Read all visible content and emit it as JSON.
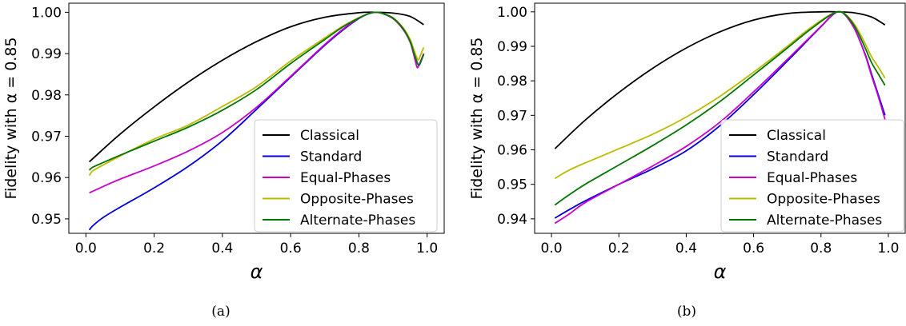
{
  "colors": {
    "Classical": "#000000",
    "Standard": "#0000dd",
    "Equal-Phases": "#cc00cc",
    "Opposite-Phases": "#bbbb00",
    "Alternate-Phases": "#007700"
  },
  "chart_data": [
    {
      "type": "line",
      "caption": "(a)",
      "xlabel": "α",
      "ylabel": "Fidelity with α = 0.85",
      "xlim": [
        -0.05,
        1.05
      ],
      "ylim": [
        0.9465,
        1.0022
      ],
      "xticks": [
        0.0,
        0.2,
        0.4,
        0.6,
        0.8,
        1.0
      ],
      "xtick_labels": [
        "0.0",
        "0.2",
        "0.4",
        "0.6",
        "0.8",
        "1.0"
      ],
      "yticks": [
        0.95,
        0.96,
        0.97,
        0.98,
        0.99,
        1.0
      ],
      "ytick_labels": [
        "0.95",
        "0.96",
        "0.97",
        "0.98",
        "0.99",
        "1.00"
      ],
      "grid": false,
      "legend_position": "lower-right",
      "series": [
        {
          "name": "Classical",
          "x": [
            0.01,
            0.1,
            0.2,
            0.3,
            0.4,
            0.5,
            0.6,
            0.7,
            0.8,
            0.85,
            0.9,
            0.95,
            0.99
          ],
          "y": [
            0.9638,
            0.9705,
            0.9771,
            0.9831,
            0.9884,
            0.9929,
            0.9965,
            0.9988,
            0.9999,
            1.0,
            0.9998,
            0.999,
            0.997
          ]
        },
        {
          "name": "Standard",
          "x": [
            0.01,
            0.02,
            0.05,
            0.1,
            0.2,
            0.3,
            0.4,
            0.5,
            0.6,
            0.7,
            0.75,
            0.8,
            0.83,
            0.85,
            0.87,
            0.9,
            0.93,
            0.95,
            0.96,
            0.97,
            0.975,
            0.98,
            0.99
          ],
          "y": [
            0.9473,
            0.9483,
            0.9503,
            0.9528,
            0.9575,
            0.9627,
            0.9689,
            0.9765,
            0.9843,
            0.992,
            0.9955,
            0.9985,
            0.9997,
            1.0,
            0.9997,
            0.9985,
            0.996,
            0.993,
            0.9905,
            0.988,
            0.9872,
            0.9877,
            0.99
          ]
        },
        {
          "name": "Equal-Phases",
          "x": [
            0.01,
            0.05,
            0.1,
            0.2,
            0.3,
            0.4,
            0.5,
            0.6,
            0.7,
            0.75,
            0.8,
            0.83,
            0.85,
            0.87,
            0.9,
            0.93,
            0.95,
            0.96,
            0.97,
            0.975,
            0.98,
            0.99
          ],
          "y": [
            0.9563,
            0.9578,
            0.9596,
            0.9628,
            0.9664,
            0.9709,
            0.977,
            0.9845,
            0.9922,
            0.9957,
            0.9986,
            0.9997,
            1.0,
            0.9997,
            0.9985,
            0.9958,
            0.9928,
            0.99,
            0.9868,
            0.987,
            0.988,
            0.99
          ]
        },
        {
          "name": "Opposite-Phases",
          "x": [
            0.01,
            0.02,
            0.05,
            0.1,
            0.2,
            0.3,
            0.4,
            0.5,
            0.6,
            0.7,
            0.75,
            0.8,
            0.83,
            0.85,
            0.87,
            0.9,
            0.93,
            0.95,
            0.96,
            0.97,
            0.975,
            0.98,
            0.99
          ],
          "y": [
            0.9605,
            0.9616,
            0.963,
            0.9652,
            0.9693,
            0.9727,
            0.9772,
            0.982,
            0.9882,
            0.9938,
            0.9965,
            0.9987,
            0.9997,
            1.0,
            0.9997,
            0.9987,
            0.9962,
            0.9935,
            0.9912,
            0.989,
            0.9885,
            0.9895,
            0.9915
          ]
        },
        {
          "name": "Alternate-Phases",
          "x": [
            0.01,
            0.02,
            0.05,
            0.1,
            0.2,
            0.3,
            0.4,
            0.5,
            0.6,
            0.7,
            0.75,
            0.8,
            0.83,
            0.85,
            0.87,
            0.9,
            0.93,
            0.95,
            0.96,
            0.97,
            0.975,
            0.98,
            0.99
          ],
          "y": [
            0.9618,
            0.9625,
            0.9636,
            0.9654,
            0.9688,
            0.9722,
            0.9763,
            0.9813,
            0.9876,
            0.9934,
            0.9963,
            0.9986,
            0.9997,
            1.0,
            0.9997,
            0.9986,
            0.996,
            0.993,
            0.9905,
            0.988,
            0.9872,
            0.9878,
            0.9898
          ]
        }
      ]
    },
    {
      "type": "line",
      "caption": "(b)",
      "xlabel": "α",
      "ylabel": "Fidelity with α = 0.85",
      "xlim": [
        -0.05,
        1.05
      ],
      "ylim": [
        0.9358,
        1.0025
      ],
      "xticks": [
        0.0,
        0.2,
        0.4,
        0.6,
        0.8,
        1.0
      ],
      "xtick_labels": [
        "0.0",
        "0.2",
        "0.4",
        "0.6",
        "0.8",
        "1.0"
      ],
      "yticks": [
        0.94,
        0.95,
        0.96,
        0.97,
        0.98,
        0.99,
        1.0
      ],
      "ytick_labels": [
        "0.94",
        "0.95",
        "0.96",
        "0.97",
        "0.98",
        "0.99",
        "1.00"
      ],
      "grid": false,
      "legend_position": "lower-right",
      "series": [
        {
          "name": "Classical",
          "x": [
            0.01,
            0.1,
            0.2,
            0.3,
            0.4,
            0.5,
            0.6,
            0.7,
            0.8,
            0.85,
            0.9,
            0.95,
            0.99
          ],
          "y": [
            0.9603,
            0.9686,
            0.9766,
            0.9836,
            0.9895,
            0.9942,
            0.9976,
            0.9995,
            1.0,
            1.0,
            0.9997,
            0.9985,
            0.9962
          ]
        },
        {
          "name": "Standard",
          "x": [
            0.01,
            0.05,
            0.1,
            0.2,
            0.3,
            0.4,
            0.5,
            0.6,
            0.7,
            0.75,
            0.8,
            0.83,
            0.85,
            0.87,
            0.9,
            0.93,
            0.95,
            0.97,
            0.99
          ],
          "y": [
            0.9402,
            0.9425,
            0.9452,
            0.95,
            0.9545,
            0.9597,
            0.967,
            0.976,
            0.9857,
            0.9907,
            0.9957,
            0.9987,
            1.0,
            0.9993,
            0.995,
            0.988,
            0.982,
            0.976,
            0.97
          ]
        },
        {
          "name": "Equal-Phases",
          "x": [
            0.01,
            0.05,
            0.1,
            0.2,
            0.3,
            0.4,
            0.5,
            0.6,
            0.7,
            0.75,
            0.8,
            0.83,
            0.85,
            0.87,
            0.9,
            0.93,
            0.95,
            0.97,
            0.99
          ],
          "y": [
            0.9387,
            0.9412,
            0.9447,
            0.95,
            0.9553,
            0.961,
            0.968,
            0.9768,
            0.9862,
            0.991,
            0.9958,
            0.9988,
            1.0,
            0.9993,
            0.995,
            0.9878,
            0.9815,
            0.9755,
            0.9688
          ]
        },
        {
          "name": "Opposite-Phases",
          "x": [
            0.01,
            0.05,
            0.1,
            0.2,
            0.3,
            0.4,
            0.5,
            0.6,
            0.7,
            0.75,
            0.8,
            0.83,
            0.85,
            0.87,
            0.9,
            0.93,
            0.95,
            0.97,
            0.99
          ],
          "y": [
            0.9517,
            0.954,
            0.9562,
            0.9603,
            0.9645,
            0.9695,
            0.9755,
            0.9825,
            0.99,
            0.994,
            0.9975,
            0.9993,
            1.0,
            0.9995,
            0.9963,
            0.991,
            0.987,
            0.984,
            0.9808
          ]
        },
        {
          "name": "Alternate-Phases",
          "x": [
            0.01,
            0.05,
            0.1,
            0.2,
            0.3,
            0.4,
            0.5,
            0.6,
            0.7,
            0.75,
            0.8,
            0.83,
            0.85,
            0.87,
            0.9,
            0.93,
            0.95,
            0.97,
            0.99
          ],
          "y": [
            0.944,
            0.9468,
            0.95,
            0.9556,
            0.9612,
            0.9672,
            0.974,
            0.9817,
            0.9895,
            0.9935,
            0.9972,
            0.9992,
            1.0,
            0.9994,
            0.9958,
            0.9898,
            0.9853,
            0.982,
            0.9787
          ]
        }
      ]
    }
  ]
}
